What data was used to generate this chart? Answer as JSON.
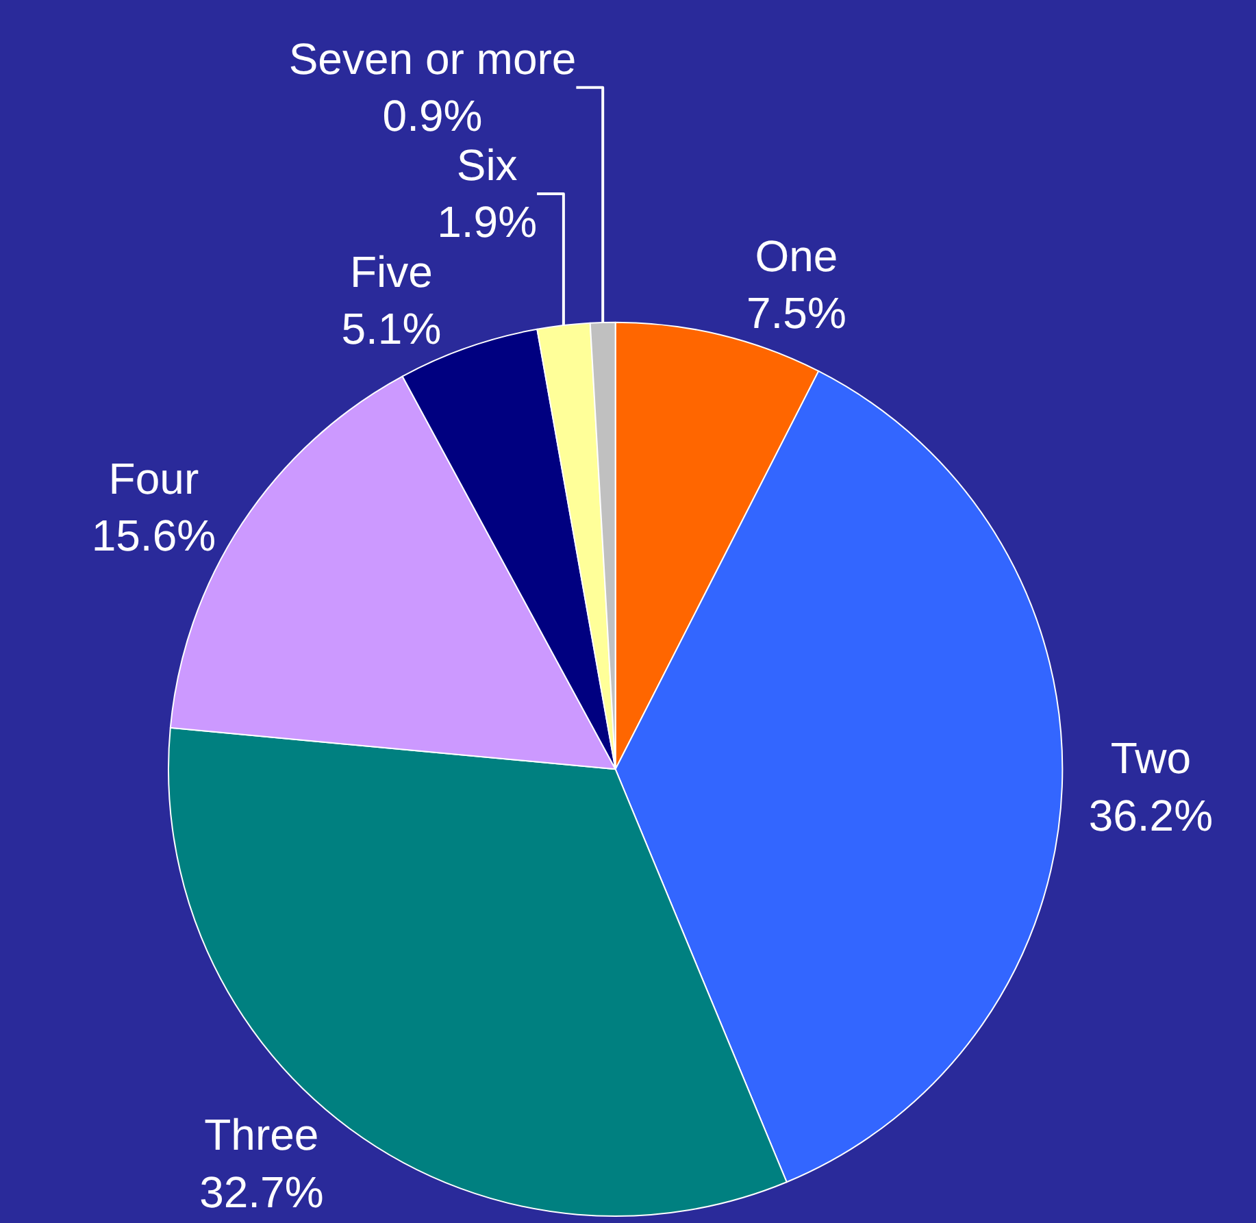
{
  "chart_data": {
    "type": "pie",
    "categories": [
      "One",
      "Two",
      "Three",
      "Four",
      "Five",
      "Six",
      "Seven or more"
    ],
    "values": [
      7.5,
      36.2,
      32.7,
      15.6,
      5.1,
      1.9,
      0.9
    ],
    "value_labels": [
      "7.5%",
      "36.2%",
      "32.7%",
      "15.6%",
      "5.1%",
      "1.9%",
      "0.9%"
    ],
    "colors": [
      "#ff6600",
      "#3366ff",
      "#008080",
      "#cc99ff",
      "#000080",
      "#ffff99",
      "#c0c0c0"
    ]
  }
}
